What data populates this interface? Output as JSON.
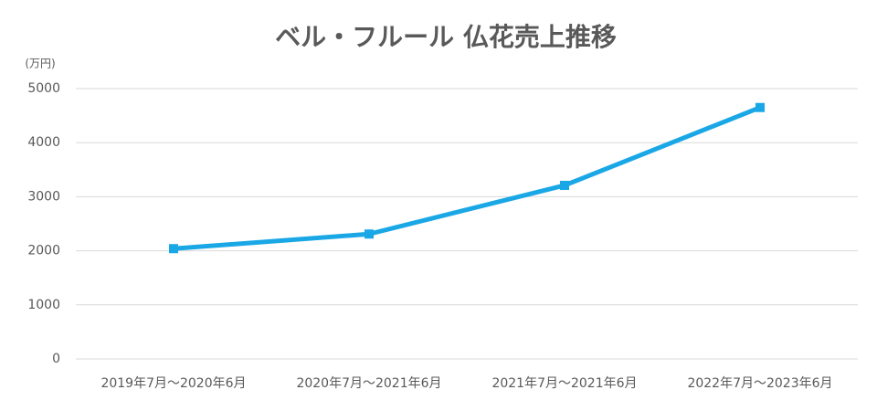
{
  "chart_data": {
    "type": "line",
    "title": "ベル・フルール 仏花売上推移",
    "ylabel": "(万円)",
    "categories": [
      "2019年7月～2020年6月",
      "2020年7月～2021年6月",
      "2021年7月～2021年6月",
      "2022年7月～2023年6月"
    ],
    "series": [
      {
        "name": "売上",
        "color": "#1aa7e6",
        "values": [
          2040,
          2310,
          3210,
          4650
        ]
      }
    ],
    "ylim": [
      0,
      5000
    ],
    "yticks": [
      0,
      1000,
      2000,
      3000,
      4000,
      5000
    ],
    "grid": true,
    "legend": false
  }
}
